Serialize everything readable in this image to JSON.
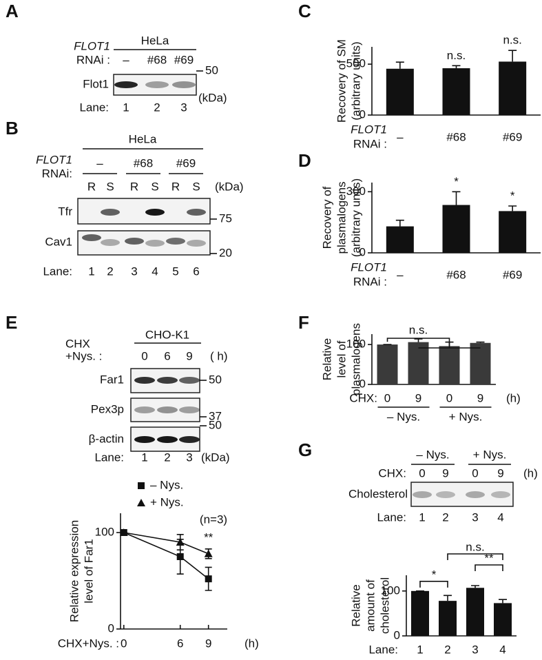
{
  "panels": {
    "A": {
      "letter": "A",
      "cell": "HeLa",
      "gene": "FLOT1",
      "rnai": "RNAi :",
      "lanes": [
        "–",
        "#68",
        "#69"
      ],
      "marker": "50",
      "kda": "(kDa)",
      "blot": "Flot1",
      "lane_label": "Lane:",
      "lane_numbers": [
        "1",
        "2",
        "3"
      ]
    },
    "B": {
      "letter": "B",
      "cell": "HeLa",
      "gene": "FLOT1",
      "rnai": "RNAi:",
      "groups": [
        "–",
        "#68",
        "#69"
      ],
      "fractions": [
        "R",
        "S",
        "R",
        "S",
        "R",
        "S"
      ],
      "kda": "(kDa)",
      "blots": [
        "Tfr",
        "Cav1"
      ],
      "markers": [
        "75",
        "20"
      ],
      "lane_label": "Lane:",
      "lane_numbers": [
        "1",
        "2",
        "3",
        "4",
        "5",
        "6"
      ]
    },
    "C": {
      "letter": "C"
    },
    "D": {
      "letter": "D"
    },
    "E": {
      "letter": "E",
      "cell": "CHO-K1",
      "treatment": [
        "CHX",
        "+Nys. :"
      ],
      "times": [
        "0",
        "6",
        "9"
      ],
      "unit": "( h)",
      "blots": [
        "Far1",
        "Pex3p",
        "β-actin"
      ],
      "markers": [
        "50",
        "37",
        "50"
      ],
      "lane_label": "Lane:",
      "lane_numbers": [
        "1",
        "2",
        "3"
      ],
      "kda": "(kDa)"
    },
    "F": {
      "letter": "F"
    },
    "G": {
      "letter": "G",
      "groups": [
        "– Nys.",
        "+ Nys."
      ],
      "chx": "CHX:",
      "times": [
        "0",
        "9",
        "0",
        "9"
      ],
      "unit": "(h)",
      "blot": "Cholesterol",
      "lane_label": "Lane:",
      "lane_numbers": [
        "1",
        "2",
        "3",
        "4"
      ]
    }
  },
  "chart_data": [
    {
      "type": "bar",
      "ylabel": [
        "Recovery of SM",
        "(arbitrary units)"
      ],
      "xlabel": [
        "FLOT1",
        "RNAi :"
      ],
      "categories": [
        "–",
        "#68",
        "#69"
      ],
      "values": [
        455,
        460,
        525
      ],
      "errors": [
        65,
        25,
        110
      ],
      "significance": [
        null,
        "n.s.",
        "n.s."
      ],
      "ylim": [
        0,
        670
      ],
      "yticks": [
        0,
        500
      ],
      "color": "#111111"
    },
    {
      "type": "bar",
      "ylabel": [
        "Recovery of",
        "plasmalogens",
        "(arbitrary units)"
      ],
      "xlabel": [
        "FLOT1",
        "RNAi :"
      ],
      "categories": [
        "–",
        "#68",
        "#69"
      ],
      "values": [
        130,
        235,
        205
      ],
      "errors": [
        30,
        65,
        25
      ],
      "significance": [
        null,
        "*",
        "*"
      ],
      "ylim": [
        0,
        345
      ],
      "yticks": [
        0,
        300
      ],
      "color": "#111111"
    },
    {
      "type": "bar",
      "ylabel": [
        "Relative",
        "level of",
        "plasmalogens"
      ],
      "xlabel": "CHX:",
      "unit": "(h)",
      "categories": [
        "0",
        "9",
        "0",
        "9"
      ],
      "groups": [
        "– Nys.",
        "+ Nys."
      ],
      "values": [
        100,
        106,
        96,
        104
      ],
      "errors": [
        0,
        8,
        10,
        2
      ],
      "ylim": [
        0,
        126
      ],
      "yticks": [
        0,
        100
      ],
      "color": "#3a3a3a",
      "comparison": {
        "label": "n.s."
      }
    },
    {
      "type": "bar",
      "ylabel": [
        "Relative",
        "amount of",
        "cholesterol"
      ],
      "xlabel": "Lane:",
      "categories": [
        "1",
        "2",
        "3",
        "4"
      ],
      "values": [
        100,
        78,
        107,
        73
      ],
      "errors": [
        0,
        12,
        5,
        8
      ],
      "ylim": [
        0,
        135
      ],
      "yticks": [
        0,
        100
      ],
      "color": "#111111",
      "comparisons": [
        {
          "label": "*",
          "between": [
            0,
            1
          ]
        },
        {
          "label": "**",
          "between": [
            2,
            3
          ]
        },
        {
          "label": "n.s.",
          "between": [
            1,
            3
          ]
        }
      ]
    },
    {
      "type": "line",
      "ylabel": [
        "Relative expression",
        "level of Far1"
      ],
      "xlabel": "CHX+Nys. :",
      "unit": "(h)",
      "x": [
        0,
        6,
        9
      ],
      "series": [
        {
          "name": "– Nys.",
          "marker": "square",
          "color": "#111111",
          "values": [
            100,
            75,
            52
          ],
          "errors": [
            0,
            18,
            12
          ]
        },
        {
          "name": "+ Nys.",
          "marker": "triangle",
          "color": "#111111",
          "values": [
            100,
            90,
            78
          ],
          "errors": [
            0,
            8,
            5
          ]
        }
      ],
      "xlim": [
        -0.35,
        11
      ],
      "xticks": [
        0,
        6,
        9
      ],
      "ylim": [
        0,
        120
      ],
      "yticks": [
        0,
        100
      ],
      "note": "(n=3)",
      "significance": [
        null,
        null,
        "**"
      ]
    }
  ]
}
